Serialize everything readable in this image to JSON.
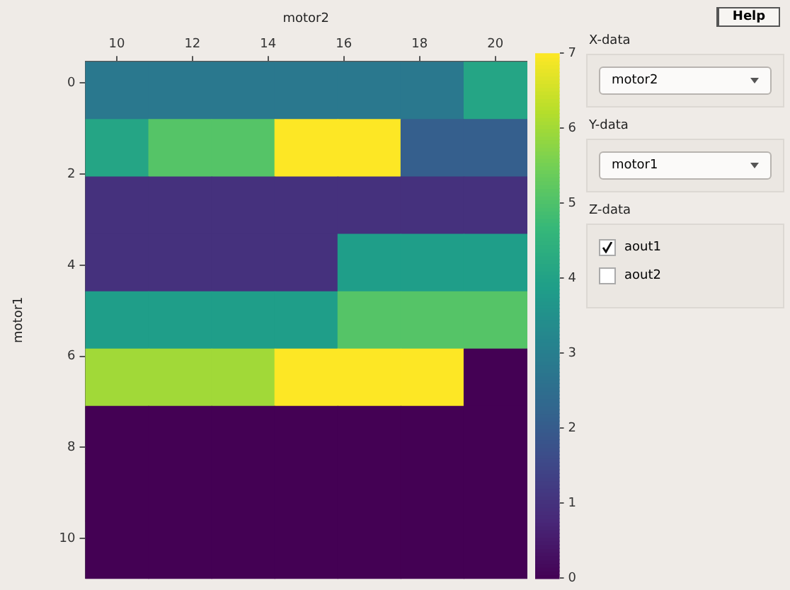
{
  "chart_data": [
    {
      "type": "heatmap",
      "xlabel": "motor2",
      "ylabel": "motor1",
      "cells": [
        [
          2.8,
          2.8,
          2.8,
          2.8,
          2.8,
          2.8,
          4.1
        ],
        [
          4.1,
          5.1,
          5.1,
          7,
          7,
          2.1,
          2.1
        ],
        [
          1,
          1,
          1,
          1,
          1,
          1,
          1
        ],
        [
          1,
          1,
          1,
          1,
          3.9,
          3.9,
          3.9
        ],
        [
          3.9,
          3.9,
          3.9,
          3.9,
          5.1,
          5.1,
          5.1
        ],
        [
          6,
          6,
          6,
          7,
          7,
          7,
          0
        ],
        [
          0,
          0,
          0,
          0,
          0,
          0,
          0
        ],
        [
          0,
          0,
          0,
          0,
          0,
          0,
          0
        ],
        [
          0,
          0,
          0,
          0,
          0,
          0,
          0
        ]
      ],
      "xlim": [
        9.17,
        20.83
      ],
      "xticks": [
        10,
        12,
        14,
        16,
        18,
        20
      ],
      "ylim": [
        10.87,
        -0.47
      ],
      "yticks": [
        0,
        2,
        4,
        6,
        8,
        10
      ],
      "clim": [
        0,
        7
      ],
      "cticks": [
        0,
        1,
        2,
        3,
        4,
        5,
        6,
        7
      ]
    },
    {
      "type": "other",
      "annotations": [
        "Help",
        "X-data",
        "motor2",
        "Y-data",
        "motor1",
        "Z-data",
        "aout1",
        "aout2"
      ]
    }
  ]
}
